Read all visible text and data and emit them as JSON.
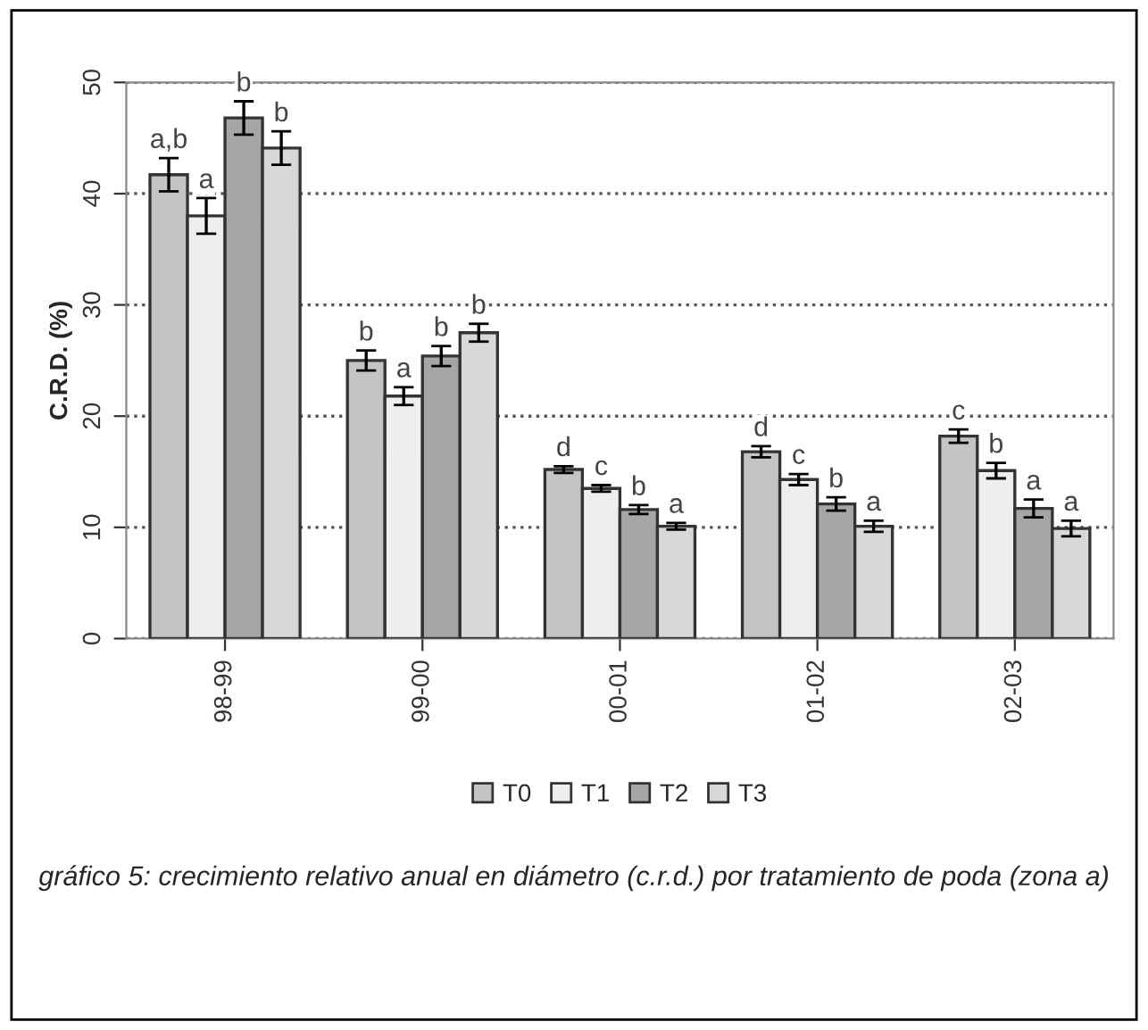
{
  "chart_data": {
    "type": "bar",
    "ylabel": "C.R.D. (%)",
    "categories": [
      "98-99",
      "99-00",
      "00-01",
      "01-02",
      "02-03"
    ],
    "series": [
      {
        "name": "T0",
        "color": "#c4c4c4",
        "values": [
          41.7,
          25.0,
          15.2,
          16.8,
          18.2
        ],
        "errors": [
          1.5,
          0.9,
          0.3,
          0.5,
          0.6
        ],
        "value_labels": [
          "a,b",
          "b",
          "d",
          "d",
          "c"
        ]
      },
      {
        "name": "T1",
        "color": "#eeeeee",
        "values": [
          38.0,
          21.8,
          13.5,
          14.3,
          15.1
        ],
        "errors": [
          1.6,
          0.8,
          0.3,
          0.5,
          0.7
        ],
        "value_labels": [
          "a",
          "a",
          "c",
          "c",
          "b"
        ]
      },
      {
        "name": "T2",
        "color": "#a6a6a6",
        "values": [
          46.8,
          25.4,
          11.6,
          12.1,
          11.7
        ],
        "errors": [
          1.5,
          0.9,
          0.4,
          0.6,
          0.8
        ],
        "value_labels": [
          "b",
          "b",
          "b",
          "b",
          "a"
        ]
      },
      {
        "name": "T3",
        "color": "#d8d8d8",
        "values": [
          44.1,
          27.5,
          10.1,
          10.1,
          9.9
        ],
        "errors": [
          1.5,
          0.8,
          0.3,
          0.5,
          0.7
        ],
        "value_labels": [
          "b",
          "b",
          "a",
          "a",
          "a"
        ]
      }
    ],
    "ylim": [
      0,
      50
    ],
    "yticks": [
      0,
      10,
      20,
      30,
      40,
      50
    ],
    "grid": "y",
    "line_style": "dotted",
    "legend": "bottom",
    "annotations": [
      "gráfico 5: crecimiento relativo anual en diámetro (c.r.d.) por tratamiento de poda (zona a)"
    ]
  }
}
